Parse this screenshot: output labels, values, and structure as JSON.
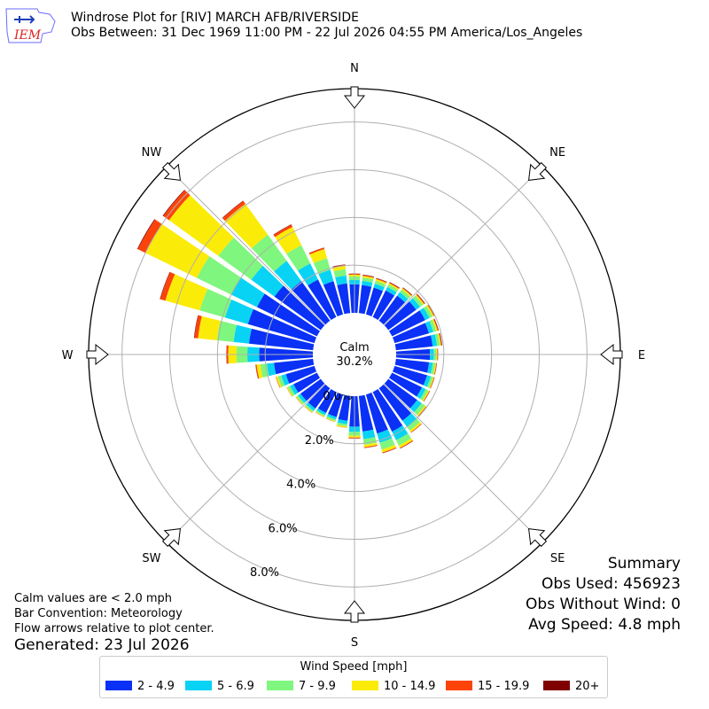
{
  "header": {
    "logo_text": "IEM",
    "title_line1": "Windrose Plot for [RIV] MARCH AFB/RIVERSIDE",
    "title_line2": "Obs Between: 31 Dec 1969 11:00 PM - 22 Jul 2026 04:55 PM America/Los_Angeles"
  },
  "directions": {
    "N": "N",
    "NE": "NE",
    "E": "E",
    "SE": "SE",
    "S": "S",
    "SW": "SW",
    "W": "W",
    "NW": "NW"
  },
  "calm": {
    "label": "Calm",
    "value": "30.2%"
  },
  "notes": {
    "line1": "Calm values are < 2.0 mph",
    "line2": "Bar Convention: Meteorology",
    "line3": "Flow arrows relative to plot center.",
    "generated": "Generated: 23 Jul 2026"
  },
  "summary": {
    "title": "Summary",
    "obs_used": "Obs Used: 456923",
    "obs_without_wind": "Obs Without Wind: 0",
    "avg_speed": "Avg Speed: 4.8 mph"
  },
  "legend": {
    "title": "Wind Speed [mph]",
    "items": [
      {
        "label": "2 - 4.9",
        "color": "#0a31f5"
      },
      {
        "label": "5 - 6.9",
        "color": "#08d3f4"
      },
      {
        "label": "7 - 9.9",
        "color": "#7ff67d"
      },
      {
        "label": "10 - 14.9",
        "color": "#fbeb09"
      },
      {
        "label": "15 - 19.9",
        "color": "#fc4309"
      },
      {
        "label": "20+",
        "color": "#800000"
      }
    ]
  },
  "chart_data": {
    "type": "windrose",
    "radial_unit": "%",
    "radial_ticks": [
      "0.0%",
      "2.0%",
      "4.0%",
      "6.0%",
      "8.0%"
    ],
    "radial_range": [
      0,
      9.4
    ],
    "direction_bins_deg": [
      0,
      10,
      20,
      30,
      40,
      50,
      60,
      70,
      80,
      90,
      100,
      110,
      120,
      130,
      140,
      150,
      160,
      170,
      180,
      190,
      200,
      210,
      220,
      230,
      240,
      250,
      260,
      270,
      280,
      290,
      300,
      310,
      320,
      330,
      340,
      350
    ],
    "speed_bins": [
      "2 - 4.9",
      "5 - 6.9",
      "7 - 9.9",
      "10 - 14.9",
      "15 - 19.9",
      "20+"
    ],
    "cumulative_percent": [
      [
        1.2,
        1.38,
        1.53,
        1.6,
        1.63,
        1.65
      ],
      [
        1.18,
        1.36,
        1.5,
        1.57,
        1.6,
        1.62
      ],
      [
        1.17,
        1.34,
        1.47,
        1.54,
        1.57,
        1.59
      ],
      [
        1.24,
        1.4,
        1.52,
        1.58,
        1.61,
        1.63
      ],
      [
        1.3,
        1.48,
        1.62,
        1.68,
        1.71,
        1.73
      ],
      [
        1.45,
        1.65,
        1.8,
        1.86,
        1.89,
        1.91
      ],
      [
        1.55,
        1.75,
        1.89,
        1.95,
        1.98,
        2.0
      ],
      [
        1.5,
        1.69,
        1.82,
        1.88,
        1.91,
        1.93
      ],
      [
        1.55,
        1.73,
        1.85,
        1.9,
        1.93,
        1.95
      ],
      [
        1.42,
        1.58,
        1.69,
        1.73,
        1.75,
        1.76
      ],
      [
        1.4,
        1.55,
        1.66,
        1.7,
        1.72,
        1.73
      ],
      [
        1.42,
        1.58,
        1.68,
        1.72,
        1.74,
        1.75
      ],
      [
        1.4,
        1.57,
        1.69,
        1.74,
        1.76,
        1.77
      ],
      [
        1.5,
        1.73,
        1.9,
        1.96,
        1.98,
        1.99
      ],
      [
        1.68,
        2.0,
        2.2,
        2.28,
        2.3,
        2.31
      ],
      [
        1.85,
        2.25,
        2.5,
        2.6,
        2.63,
        2.64
      ],
      [
        1.7,
        2.1,
        2.4,
        2.52,
        2.55,
        2.56
      ],
      [
        1.5,
        1.82,
        2.06,
        2.16,
        2.19,
        2.2
      ],
      [
        1.28,
        1.5,
        1.66,
        1.74,
        1.77,
        1.78
      ],
      [
        1.05,
        1.19,
        1.29,
        1.34,
        1.35,
        1.35
      ],
      [
        0.98,
        1.09,
        1.16,
        1.19,
        1.2,
        1.2
      ],
      [
        0.98,
        1.08,
        1.14,
        1.17,
        1.18,
        1.18
      ],
      [
        1.05,
        1.17,
        1.24,
        1.27,
        1.28,
        1.28
      ],
      [
        1.05,
        1.18,
        1.26,
        1.29,
        1.3,
        1.3
      ],
      [
        1.1,
        1.26,
        1.37,
        1.41,
        1.42,
        1.42
      ],
      [
        1.25,
        1.45,
        1.6,
        1.67,
        1.69,
        1.69
      ],
      [
        1.65,
        1.95,
        2.22,
        2.38,
        2.42,
        2.43
      ],
      [
        2.25,
        2.75,
        3.2,
        3.55,
        3.62,
        3.63
      ],
      [
        2.7,
        3.35,
        4.05,
        4.85,
        5.0,
        5.02
      ],
      [
        2.9,
        3.9,
        5.0,
        6.5,
        6.72,
        6.74
      ],
      [
        2.8,
        4.0,
        5.6,
        8.0,
        8.35,
        8.38
      ],
      [
        2.4,
        3.6,
        5.3,
        7.85,
        8.15,
        8.18
      ],
      [
        2.05,
        3.1,
        4.45,
        6.05,
        6.2,
        6.22
      ],
      [
        1.75,
        2.5,
        3.35,
        4.2,
        4.3,
        4.32
      ],
      [
        1.45,
        1.95,
        2.45,
        2.85,
        2.91,
        2.92
      ],
      [
        1.25,
        1.58,
        1.85,
        2.0,
        2.03,
        2.05
      ]
    ]
  }
}
